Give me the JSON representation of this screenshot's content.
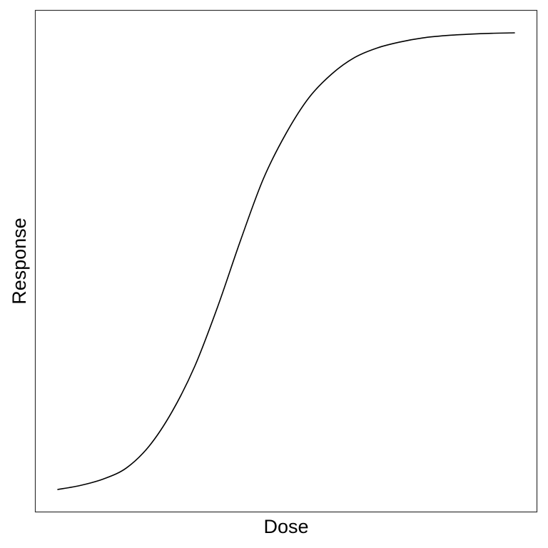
{
  "chart_data": {
    "type": "line",
    "title": "",
    "xlabel": "Dose",
    "ylabel": "Response",
    "xlim": [
      0,
      1
    ],
    "ylim": [
      0,
      1
    ],
    "grid": false,
    "x_ticks_shown": false,
    "y_ticks_shown": false,
    "series": [
      {
        "color": "#000000",
        "x": [
          0.0,
          0.05,
          0.1,
          0.15,
          0.2,
          0.25,
          0.3,
          0.35,
          0.4,
          0.45,
          0.5,
          0.55,
          0.6,
          0.65,
          0.7,
          0.75,
          0.8,
          0.85,
          0.9,
          0.95,
          1.0
        ],
        "y": [
          0.0,
          0.009,
          0.023,
          0.047,
          0.095,
          0.17,
          0.27,
          0.4,
          0.545,
          0.68,
          0.78,
          0.858,
          0.91,
          0.946,
          0.967,
          0.98,
          0.989,
          0.994,
          0.997,
          0.999,
          1.0
        ]
      }
    ]
  }
}
